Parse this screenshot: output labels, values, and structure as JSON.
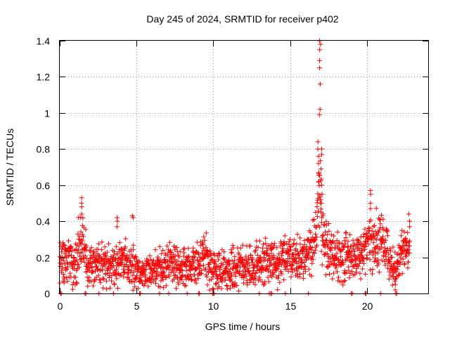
{
  "chart_data": {
    "type": "scatter",
    "title": "Day 245 of 2024, SRMTID for receiver p402",
    "xlabel": "GPS time / hours",
    "ylabel": "SRMTID / TECUs",
    "xlim": [
      0,
      24
    ],
    "ylim": [
      0,
      1.4
    ],
    "xticks": [
      0,
      5,
      10,
      15,
      20
    ],
    "xtick_labels": [
      "0",
      "5",
      "10",
      "15",
      "20"
    ],
    "yticks": [
      0,
      0.2,
      0.4,
      0.6,
      0.8,
      1.0,
      1.2,
      1.4
    ],
    "ytick_labels": [
      "0",
      "0.2",
      "0.4",
      "0.6",
      "0.8",
      "1",
      "1.2",
      "1.4"
    ],
    "grid": true,
    "marker": "plus",
    "color": "#ff0000",
    "series": [
      {
        "name": "SRMTID",
        "profile_x": [
          0,
          0.3,
          0.6,
          0.9,
          1.2,
          1.5,
          1.8,
          2.2,
          2.6,
          3.0,
          3.5,
          4.0,
          4.5,
          4.9,
          5.2,
          5.6,
          6.0,
          6.5,
          7.0,
          7.5,
          8.0,
          8.5,
          9.0,
          9.4,
          9.8,
          10.2,
          10.6,
          11.0,
          11.5,
          12.0,
          12.5,
          13.0,
          13.5,
          14.0,
          14.5,
          15.0,
          15.5,
          16.0,
          16.4,
          16.7,
          16.9,
          17.1,
          17.4,
          17.8,
          18.2,
          18.6,
          19.0,
          19.4,
          19.8,
          20.2,
          20.6,
          21.0,
          21.4,
          21.8,
          22.1,
          22.4,
          22.8
        ],
        "profile_y": [
          0.2,
          0.15,
          0.2,
          0.13,
          0.25,
          0.3,
          0.15,
          0.18,
          0.15,
          0.17,
          0.15,
          0.2,
          0.15,
          0.17,
          0.1,
          0.11,
          0.12,
          0.14,
          0.15,
          0.17,
          0.14,
          0.15,
          0.16,
          0.24,
          0.16,
          0.12,
          0.13,
          0.12,
          0.15,
          0.14,
          0.15,
          0.16,
          0.17,
          0.18,
          0.18,
          0.2,
          0.18,
          0.22,
          0.22,
          0.3,
          0.6,
          0.32,
          0.26,
          0.22,
          0.2,
          0.22,
          0.2,
          0.22,
          0.24,
          0.3,
          0.28,
          0.3,
          0.2,
          0.12,
          0.2,
          0.25,
          0.25
        ],
        "spikes": [
          {
            "x": 16.95,
            "values": [
              1.4,
              1.38,
              1.35,
              1.29,
              1.25,
              1.16,
              1.02,
              0.99
            ]
          },
          {
            "x": 16.85,
            "values": [
              0.84,
              0.8,
              0.76,
              0.72,
              0.67,
              0.62
            ]
          },
          {
            "x": 17.05,
            "values": [
              0.8,
              0.77,
              0.69,
              0.6,
              0.55,
              0.5,
              0.45
            ]
          },
          {
            "x": 1.45,
            "values": [
              0.53,
              0.5,
              0.48,
              0.44
            ]
          },
          {
            "x": 4.75,
            "values": [
              0.43,
              0.42
            ]
          },
          {
            "x": 3.75,
            "values": [
              0.42,
              0.4,
              0.37
            ]
          },
          {
            "x": 20.25,
            "values": [
              0.57,
              0.55,
              0.5,
              0.47
            ]
          },
          {
            "x": 22.75,
            "values": [
              0.44,
              0.4,
              0.37
            ]
          },
          {
            "x": 21.85,
            "values": [
              0.08,
              0.05,
              0.02
            ]
          }
        ],
        "zero_points_x": [
          0.05,
          0.1,
          1.65,
          1.7,
          2.55,
          3.5,
          5.2,
          5.25,
          6.5,
          7.1,
          8.3,
          9.05,
          9.1,
          9.95,
          10.0,
          10.05,
          13.0,
          13.65,
          13.75,
          13.8,
          14.7,
          16.2,
          19.0,
          19.05,
          19.9,
          19.95,
          20.9,
          21.9,
          21.95
        ]
      }
    ]
  }
}
